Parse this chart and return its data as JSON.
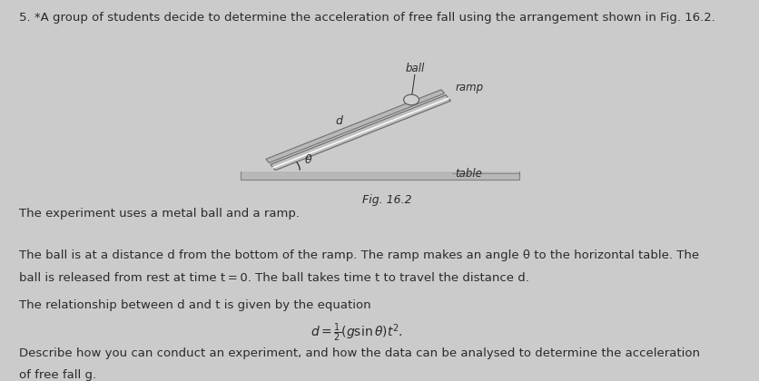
{
  "background_color": "#cbcbcb",
  "title_text": "5. *A group of students decide to determine the acceleration of free fall using the arrangement shown in Fig. 16.2.",
  "para1": "The experiment uses a metal ball and a ramp.",
  "para2_line1": "The ball is at a distance d from the bottom of the ramp. The ramp makes an angle θ to the horizontal table. The",
  "para2_line2": "ball is released from rest at time t = 0. The ball takes time t to travel the distance d.",
  "para3": "The relationship between d and t is given by the equation",
  "para4_line1": "Describe how you can conduct an experiment, and how the data can be analysed to determine the acceleration",
  "para4_line2": "of free fall g.",
  "fig_caption": "Fig. 16.2",
  "label_ball": "ball",
  "label_ramp": "ramp",
  "label_table": "table",
  "label_d": "d",
  "label_theta": "θ",
  "text_color": "#2a2a2a",
  "font_size_body": 9.5
}
